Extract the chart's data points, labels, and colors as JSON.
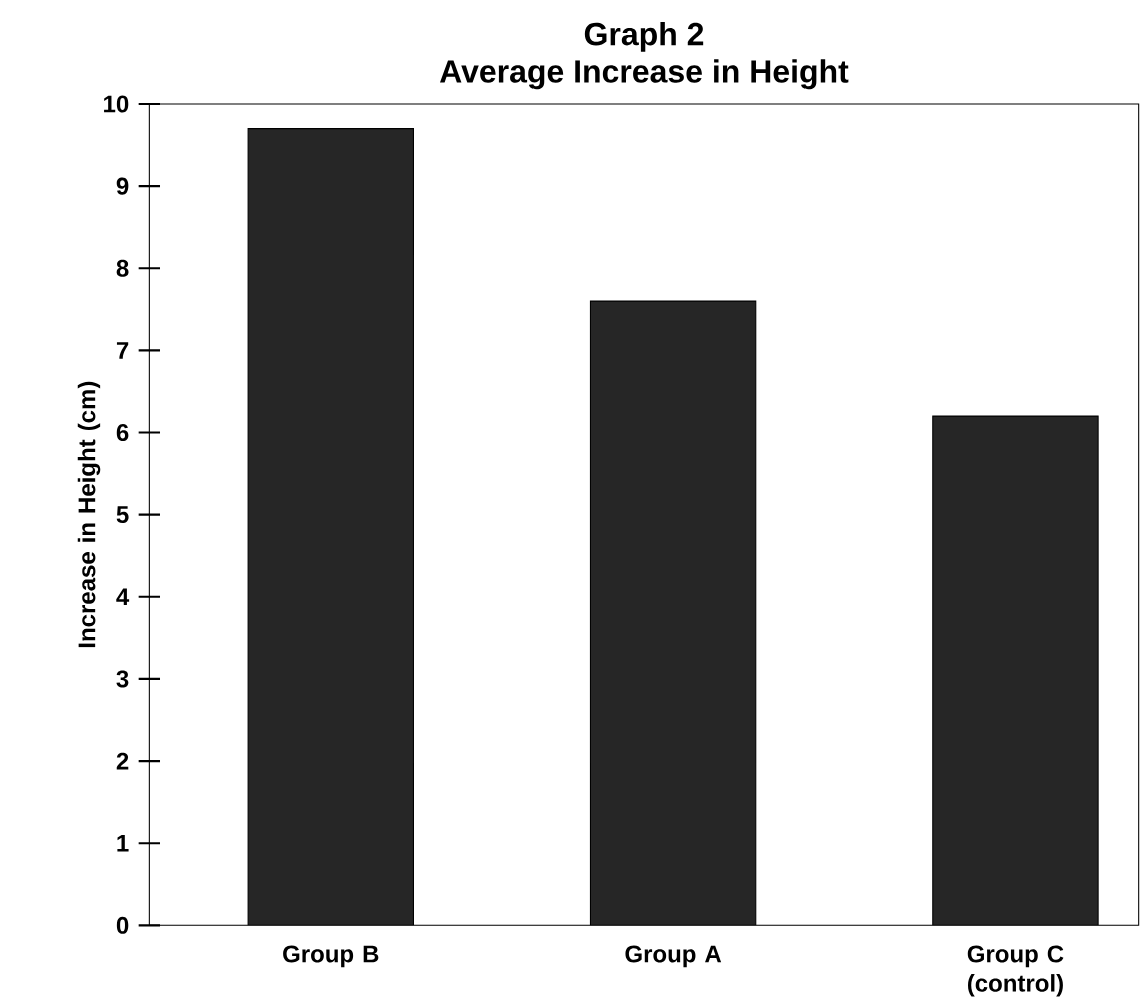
{
  "chart_data": {
    "type": "bar",
    "title": "Graph 2",
    "subtitle": "Average Increase in Height",
    "ylabel": "Increase in Height (cm)",
    "categories": [
      "Group B",
      "Group A",
      "Group C (control)"
    ],
    "values": [
      9.7,
      7.6,
      6.2
    ],
    "color": "#262626",
    "ylim": [
      0,
      10
    ],
    "yticks": [
      0,
      1,
      2,
      3,
      4,
      5,
      6,
      7,
      8,
      9,
      10
    ],
    "grid": false
  }
}
